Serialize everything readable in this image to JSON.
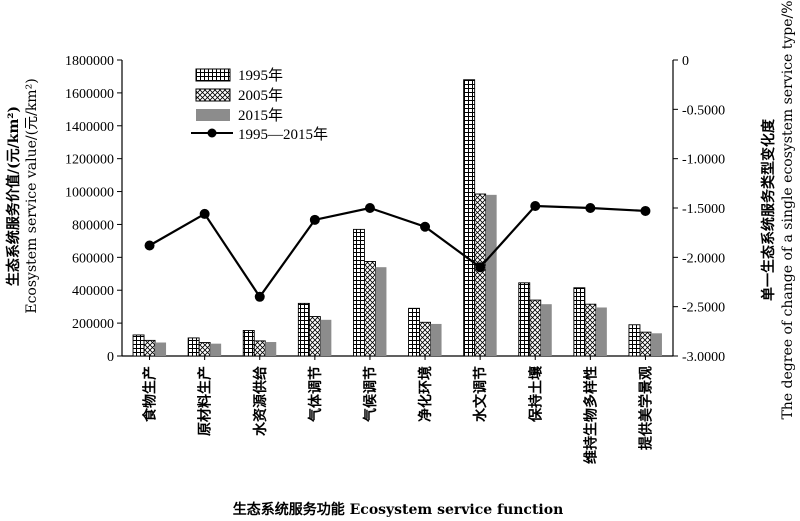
{
  "chart_data": {
    "type": "bar",
    "categories": [
      "食物生产",
      "原材料生产",
      "水资源供给",
      "气体调节",
      "气候调节",
      "净化环境",
      "水文调节",
      "保持土壤",
      "维持生物多样性",
      "提供美学景观"
    ],
    "series": [
      {
        "name": "1995年",
        "axis": "left",
        "pattern": "grid",
        "values": [
          128000,
          110000,
          155000,
          320000,
          770000,
          290000,
          1680000,
          445000,
          415000,
          190000
        ]
      },
      {
        "name": "2005年",
        "axis": "left",
        "pattern": "crosshatch",
        "values": [
          95000,
          82000,
          92000,
          240000,
          575000,
          205000,
          985000,
          340000,
          315000,
          145000
        ]
      },
      {
        "name": "2015年",
        "axis": "left",
        "pattern": "solid-gray",
        "values": [
          82000,
          75000,
          85000,
          220000,
          540000,
          195000,
          980000,
          315000,
          295000,
          138000
        ]
      },
      {
        "name": "1995—2015年",
        "axis": "right",
        "type": "line",
        "marker": "circle",
        "values": [
          -1.88,
          -1.56,
          -2.4,
          -1.62,
          -1.5,
          -1.69,
          -2.1,
          -1.48,
          -1.5,
          -1.53
        ]
      }
    ],
    "y_left": {
      "label_cn": "生态系统服务价值/(元/km²)",
      "label_en": "Ecosystem service value/(元/km²)",
      "ylim": [
        0,
        1800000
      ],
      "ticks": [
        "0",
        "200000",
        "400000",
        "600000",
        "800000",
        "1000000",
        "1200000",
        "1400000",
        "1600000",
        "1800000"
      ]
    },
    "y_right": {
      "label_cn": "单一生态系统服务类型变化度",
      "label_en": "The degree of change of a single ecosystem service type/%",
      "ylim": [
        -3.0,
        0
      ],
      "ticks": [
        "0",
        "-0.5000",
        "-1.0000",
        "-1.5000",
        "-2.0000",
        "-2.5000",
        "-3.0000"
      ]
    },
    "xlabel": "生态系统服务功能 Ecosystem service function",
    "legend_position": "top-left",
    "colors": {
      "bar_2015": "#8c8c8c",
      "line": "#000000"
    }
  }
}
